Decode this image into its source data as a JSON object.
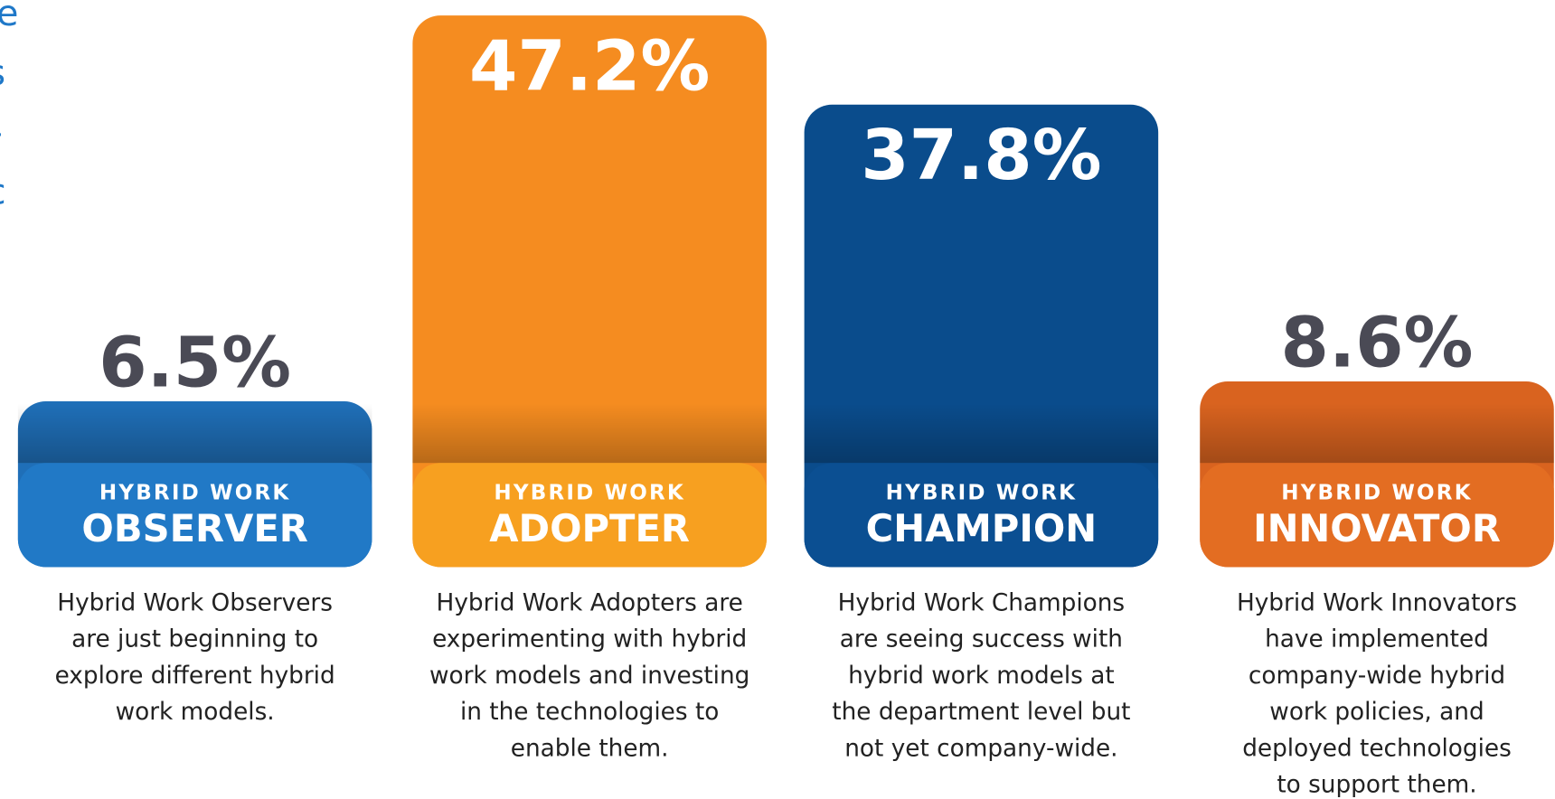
{
  "chart_data": {
    "type": "bar",
    "side_text": [
      "ne",
      "s",
      "-",
      "c"
    ],
    "categories": [
      "OBSERVER",
      "ADOPTER",
      "CHAMPION",
      "INNOVATOR"
    ],
    "category_prefix": [
      "HYBRID WORK",
      "HYBRID WORK",
      "HYBRID WORK",
      "HYBRID WORK"
    ],
    "values": [
      6.5,
      47.2,
      37.8,
      8.6
    ],
    "value_labels": [
      "6.5%",
      "47.2%",
      "37.8%",
      "8.6%"
    ],
    "colors": [
      "#1f6fb8",
      "#f58c20",
      "#0a4c8c",
      "#d9631f"
    ],
    "band_colors": [
      "#2179c6",
      "#f7a020",
      "#0b4f92",
      "#e36d22"
    ],
    "ylim": [
      0,
      48
    ],
    "descriptions": [
      [
        "Hybrid Work Observers",
        "are just beginning to",
        "explore different hybrid",
        "work models."
      ],
      [
        "Hybrid Work Adopters are",
        "experimenting with hybrid",
        "work models and investing",
        "in the technologies to",
        "enable them."
      ],
      [
        "Hybrid Work Champions",
        "are seeing success with",
        "hybrid work models at",
        "the department level but",
        "not yet company-wide."
      ],
      [
        "Hybrid Work Innovators",
        "have implemented",
        "company-wide hybrid",
        "work policies, and",
        "deployed technologies",
        "to support them."
      ]
    ]
  }
}
